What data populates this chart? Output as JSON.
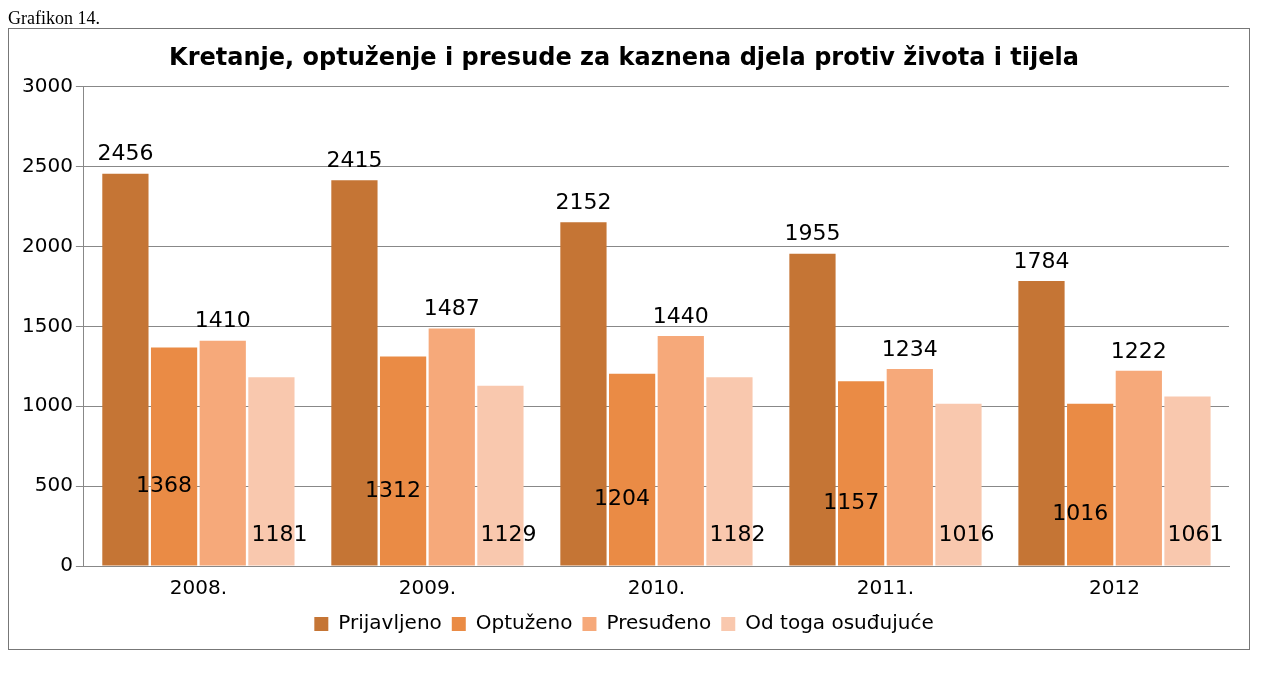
{
  "chart_data": {
    "type": "bar",
    "title": "Kretanje, optuženje i presude za kaznena djela protiv života i tijela",
    "annotations": [
      "Grafikon 14."
    ],
    "categories": [
      "2008.",
      "2009.",
      "2010.",
      "2011.",
      "2012"
    ],
    "series": [
      {
        "name": "Prijavljeno",
        "color": "#c57535",
        "values": [
          2456,
          2415,
          2152,
          1955,
          1784
        ]
      },
      {
        "name": "Optuženo",
        "color": "#ea8b45",
        "values": [
          1368,
          1312,
          1204,
          1157,
          1016
        ]
      },
      {
        "name": "Presuđeno",
        "color": "#f6a97a",
        "values": [
          1410,
          1487,
          1440,
          1234,
          1222
        ]
      },
      {
        "name": "Od toga osuđujuće",
        "color": "#f9c8ae",
        "values": [
          1181,
          1129,
          1182,
          1016,
          1061
        ]
      }
    ],
    "ylim": [
      0,
      3000
    ],
    "yticks": [
      0,
      500,
      1000,
      1500,
      2000,
      2500,
      3000
    ],
    "grid": "y",
    "legend": "bottom",
    "data_labels": true
  }
}
